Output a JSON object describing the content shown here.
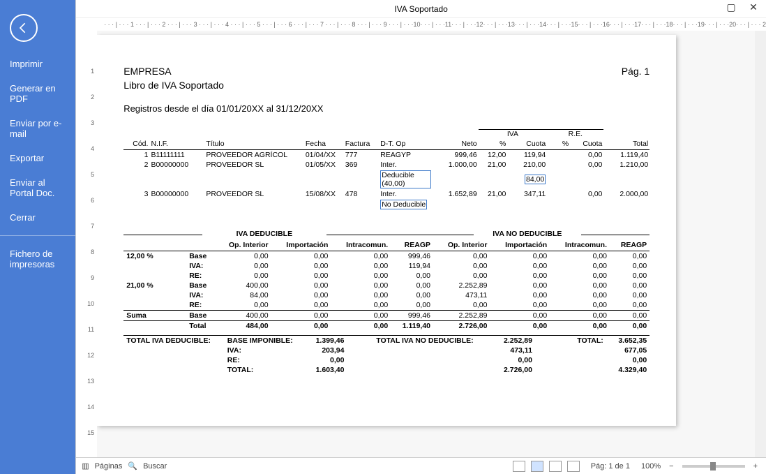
{
  "window": {
    "title": "IVA Soportado"
  },
  "sidebar": {
    "items": [
      "Imprimir",
      "Generar en PDF",
      "Enviar por e-mail",
      "Exportar",
      "Enviar al Portal Doc.",
      "Cerrar"
    ],
    "secondary": [
      "Fichero de impresoras"
    ]
  },
  "status": {
    "pages_label": "Páginas",
    "search_label": "Buscar",
    "page_info": "Pág: 1 de 1",
    "zoom": "100%"
  },
  "doc": {
    "company": "EMPRESA",
    "book_title": "Libro de IVA Soportado",
    "page_label": "Pág. 1",
    "range": "Registros desde el día 01/01/20XX al 31/12/20XX",
    "colors": {
      "highlight_border": "#3b78c9",
      "sidebar_bg": "#4a7dd4"
    },
    "rec_headers": {
      "cod": "Cód.",
      "nif": "N.I.F.",
      "titulo": "Título",
      "fecha": "Fecha",
      "factura": "Factura",
      "dtop": "D-T. Op",
      "neto": "Neto",
      "iva_group": "IVA",
      "pct": "%",
      "cuota": "Cuota",
      "re_group": "R.E.",
      "re_pct": "%",
      "re_cuota": "Cuota",
      "total": "Total"
    },
    "records": [
      {
        "cod": "1",
        "nif": "B11111111",
        "titulo": "PROVEEDOR AGRÍCOL",
        "fecha": "01/04/XX",
        "factura": "777",
        "dtop": "REAGYP",
        "neto": "999,46",
        "iva_pct": "12,00",
        "iva_cuota": "119,94",
        "re_pct": "",
        "re_cuota": "0,00",
        "total": "1.119,40",
        "extra": null
      },
      {
        "cod": "2",
        "nif": "B00000000",
        "titulo": "PROVEEDOR SL",
        "fecha": "01/05/XX",
        "factura": "369",
        "dtop": "Inter.",
        "neto": "1.000,00",
        "iva_pct": "21,00",
        "iva_cuota": "210,00",
        "re_pct": "",
        "re_cuota": "0,00",
        "total": "1.210,00",
        "extra": {
          "label": "Deducible (40,00)",
          "cuota": "84,00"
        }
      },
      {
        "cod": "3",
        "nif": "B00000000",
        "titulo": "PROVEEDOR SL",
        "fecha": "15/08/XX",
        "factura": "478",
        "dtop": "Inter.",
        "neto": "1.652,89",
        "iva_pct": "21,00",
        "iva_cuota": "347,11",
        "re_pct": "",
        "re_cuota": "0,00",
        "total": "2.000,00",
        "extra": {
          "label": "No Deducible",
          "cuota": ""
        }
      }
    ],
    "summary": {
      "left_title": "IVA DEDUCIBLE",
      "right_title": "IVA NO DEDUCIBLE",
      "cols": [
        "Op. Interior",
        "Importación",
        "Intracomun.",
        "REAGP",
        "Op. Interior",
        "Importación",
        "Intracomun.",
        "REAGP"
      ],
      "groups": [
        {
          "label": "12,00 %",
          "rows": [
            {
              "k": "Base",
              "v": [
                "0,00",
                "0,00",
                "0,00",
                "999,46",
                "0,00",
                "0,00",
                "0,00",
                "0,00"
              ]
            },
            {
              "k": "IVA:",
              "v": [
                "0,00",
                "0,00",
                "0,00",
                "119,94",
                "0,00",
                "0,00",
                "0,00",
                "0,00"
              ]
            },
            {
              "k": "RE:",
              "v": [
                "0,00",
                "0,00",
                "0,00",
                "0,00",
                "0,00",
                "0,00",
                "0,00",
                "0,00"
              ]
            }
          ]
        },
        {
          "label": "21,00 %",
          "rows": [
            {
              "k": "Base",
              "v": [
                "400,00",
                "0,00",
                "0,00",
                "0,00",
                "2.252,89",
                "0,00",
                "0,00",
                "0,00"
              ]
            },
            {
              "k": "IVA:",
              "v": [
                "84,00",
                "0,00",
                "0,00",
                "0,00",
                "473,11",
                "0,00",
                "0,00",
                "0,00"
              ]
            },
            {
              "k": "RE:",
              "v": [
                "0,00",
                "0,00",
                "0,00",
                "0,00",
                "0,00",
                "0,00",
                "0,00",
                "0,00"
              ]
            }
          ]
        }
      ],
      "suma": {
        "label": "Suma",
        "rows": [
          {
            "k": "Base",
            "v": [
              "400,00",
              "0,00",
              "0,00",
              "999,46",
              "2.252,89",
              "0,00",
              "0,00",
              "0,00"
            ]
          }
        ]
      },
      "total_row": {
        "k": "Total",
        "v": [
          "484,00",
          "0,00",
          "0,00",
          "1.119,40",
          "2.726,00",
          "0,00",
          "0,00",
          "0,00"
        ]
      },
      "grand": {
        "left_label": "TOTAL IVA DEDUCIBLE:",
        "right_label": "TOTAL IVA NO DEDUCIBLE:",
        "total_label": "TOTAL:",
        "rows": [
          {
            "k": "BASE IMPONIBLE:",
            "l": "1.399,46",
            "r": "2.252,89",
            "t": "3.652,35"
          },
          {
            "k": "IVA:",
            "l": "203,94",
            "r": "473,11",
            "t": "677,05"
          },
          {
            "k": "RE:",
            "l": "0,00",
            "r": "0,00",
            "t": "0,00"
          },
          {
            "k": "TOTAL:",
            "l": "1.603,40",
            "r": "2.726,00",
            "t": "4.329,40"
          }
        ]
      }
    }
  }
}
